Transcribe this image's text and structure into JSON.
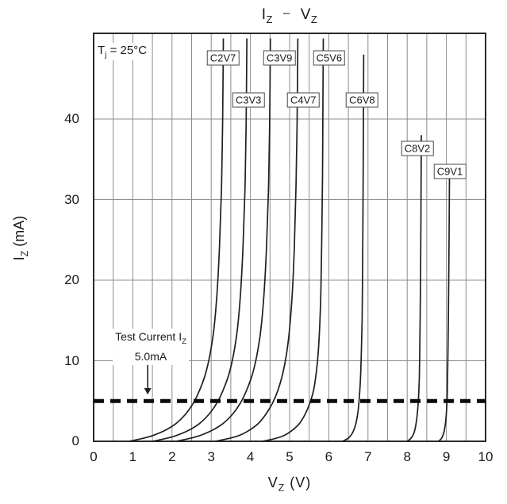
{
  "title": {
    "left_base": "I",
    "left_sub": "Z",
    "separator": "–",
    "right_base": "V",
    "right_sub": "Z"
  },
  "temp_annotation": {
    "base": "T",
    "sub": "j",
    "rest": " = 25°C"
  },
  "test_current_annotation": {
    "line1_base": "Test Current I",
    "line1_sub": "Z",
    "line2": "5.0mA"
  },
  "y_axis": {
    "label_base": "I",
    "label_sub": "Z",
    "label_unit": " (mA)"
  },
  "x_axis": {
    "label_base": "V",
    "label_sub": "Z",
    "label_unit": " (V)"
  },
  "colors": {
    "curve": "#1f1f1f",
    "grid": "#8c8c8c",
    "border": "#2a2a2a",
    "dashed": "#0a0a0a",
    "text": "#1a1a1a"
  },
  "chart_data": {
    "type": "line",
    "title": "IZ – VZ",
    "xlabel": "VZ (V)",
    "ylabel": "IZ (mA)",
    "xlim": [
      0,
      10
    ],
    "ylim": [
      0,
      50
    ],
    "x_ticks": [
      0,
      1,
      2,
      3,
      4,
      5,
      6,
      7,
      8,
      9,
      10
    ],
    "y_ticks": [
      0,
      10,
      20,
      30,
      40
    ],
    "x_minor_step": 0.5,
    "y_gridlines": [
      10,
      20,
      30,
      40
    ],
    "grid": "on",
    "legend": "none",
    "temperature": "Tj = 25°C",
    "test_current_mA": 5.0,
    "series": [
      {
        "name": "C2V7",
        "points": [
          [
            0.9,
            0
          ],
          [
            1.2,
            0.3
          ],
          [
            1.5,
            0.7
          ],
          [
            1.8,
            1.3
          ],
          [
            2.1,
            2.2
          ],
          [
            2.35,
            3.4
          ],
          [
            2.55,
            4.8
          ],
          [
            2.7,
            6.3
          ],
          [
            2.85,
            8.3
          ],
          [
            2.97,
            10.8
          ],
          [
            3.07,
            14
          ],
          [
            3.15,
            18.5
          ],
          [
            3.21,
            24
          ],
          [
            3.26,
            31
          ],
          [
            3.29,
            39
          ],
          [
            3.31,
            50
          ]
        ]
      },
      {
        "name": "C3V3",
        "points": [
          [
            1.5,
            0
          ],
          [
            1.8,
            0.3
          ],
          [
            2.1,
            0.7
          ],
          [
            2.4,
            1.3
          ],
          [
            2.7,
            2.2
          ],
          [
            2.95,
            3.4
          ],
          [
            3.15,
            4.8
          ],
          [
            3.3,
            6.3
          ],
          [
            3.45,
            8.3
          ],
          [
            3.57,
            10.8
          ],
          [
            3.67,
            14
          ],
          [
            3.75,
            18.5
          ],
          [
            3.81,
            24
          ],
          [
            3.86,
            31
          ],
          [
            3.89,
            39
          ],
          [
            3.91,
            50
          ]
        ]
      },
      {
        "name": "C3V9",
        "points": [
          [
            2.1,
            0
          ],
          [
            2.4,
            0.3
          ],
          [
            2.7,
            0.7
          ],
          [
            3.0,
            1.3
          ],
          [
            3.3,
            2.2
          ],
          [
            3.55,
            3.4
          ],
          [
            3.75,
            4.8
          ],
          [
            3.9,
            6.3
          ],
          [
            4.05,
            8.3
          ],
          [
            4.17,
            10.8
          ],
          [
            4.27,
            14
          ],
          [
            4.35,
            18.5
          ],
          [
            4.41,
            24
          ],
          [
            4.46,
            31
          ],
          [
            4.49,
            39
          ],
          [
            4.51,
            50
          ]
        ]
      },
      {
        "name": "C4V7",
        "points": [
          [
            3.1,
            0
          ],
          [
            3.4,
            0.3
          ],
          [
            3.7,
            0.7
          ],
          [
            3.95,
            1.3
          ],
          [
            4.2,
            2.2
          ],
          [
            4.4,
            3.4
          ],
          [
            4.57,
            4.8
          ],
          [
            4.7,
            6.3
          ],
          [
            4.82,
            8.3
          ],
          [
            4.92,
            10.8
          ],
          [
            5.0,
            14
          ],
          [
            5.07,
            18.5
          ],
          [
            5.12,
            24
          ],
          [
            5.16,
            31
          ],
          [
            5.19,
            39
          ],
          [
            5.21,
            50
          ]
        ]
      },
      {
        "name": "C5V6",
        "points": [
          [
            4.3,
            0
          ],
          [
            4.6,
            0.3
          ],
          [
            4.85,
            0.7
          ],
          [
            5.05,
            1.3
          ],
          [
            5.25,
            2.2
          ],
          [
            5.4,
            3.4
          ],
          [
            5.52,
            4.8
          ],
          [
            5.61,
            6.3
          ],
          [
            5.68,
            8.5
          ],
          [
            5.73,
            11
          ],
          [
            5.77,
            14.5
          ],
          [
            5.8,
            19
          ],
          [
            5.82,
            25
          ],
          [
            5.84,
            33
          ],
          [
            5.85,
            42
          ],
          [
            5.86,
            50
          ]
        ]
      },
      {
        "name": "C6V8",
        "points": [
          [
            6.35,
            0
          ],
          [
            6.5,
            0.4
          ],
          [
            6.6,
            1
          ],
          [
            6.68,
            2
          ],
          [
            6.74,
            3.5
          ],
          [
            6.78,
            5.5
          ],
          [
            6.81,
            8
          ],
          [
            6.83,
            11
          ],
          [
            6.85,
            15
          ],
          [
            6.86,
            20
          ],
          [
            6.87,
            27
          ],
          [
            6.88,
            36
          ],
          [
            6.89,
            48
          ]
        ]
      },
      {
        "name": "C8V2",
        "points": [
          [
            8.0,
            0
          ],
          [
            8.1,
            0.4
          ],
          [
            8.17,
            1
          ],
          [
            8.22,
            2
          ],
          [
            8.26,
            3.5
          ],
          [
            8.29,
            5.5
          ],
          [
            8.31,
            8
          ],
          [
            8.32,
            11
          ],
          [
            8.33,
            15
          ],
          [
            8.34,
            20
          ],
          [
            8.35,
            27
          ],
          [
            8.36,
            38
          ]
        ]
      },
      {
        "name": "C9V1",
        "points": [
          [
            8.8,
            0
          ],
          [
            8.88,
            0.4
          ],
          [
            8.93,
            1
          ],
          [
            8.97,
            2
          ],
          [
            9.0,
            3.5
          ],
          [
            9.02,
            5.5
          ],
          [
            9.03,
            8
          ],
          [
            9.04,
            11
          ],
          [
            9.05,
            15
          ],
          [
            9.06,
            20
          ],
          [
            9.07,
            26
          ],
          [
            9.08,
            34
          ]
        ]
      }
    ],
    "curve_labels": [
      {
        "text": "C2V7",
        "v": 3.3,
        "i": 47.6
      },
      {
        "text": "C3V3",
        "v": 3.95,
        "i": 42.4
      },
      {
        "text": "C3V9",
        "v": 4.74,
        "i": 47.6
      },
      {
        "text": "C4V7",
        "v": 5.35,
        "i": 42.4
      },
      {
        "text": "C5V6",
        "v": 6.01,
        "i": 47.6
      },
      {
        "text": "C6V8",
        "v": 6.85,
        "i": 42.4
      },
      {
        "text": "C8V2",
        "v": 8.26,
        "i": 36.4
      },
      {
        "text": "C9V1",
        "v": 9.09,
        "i": 33.5
      }
    ]
  }
}
